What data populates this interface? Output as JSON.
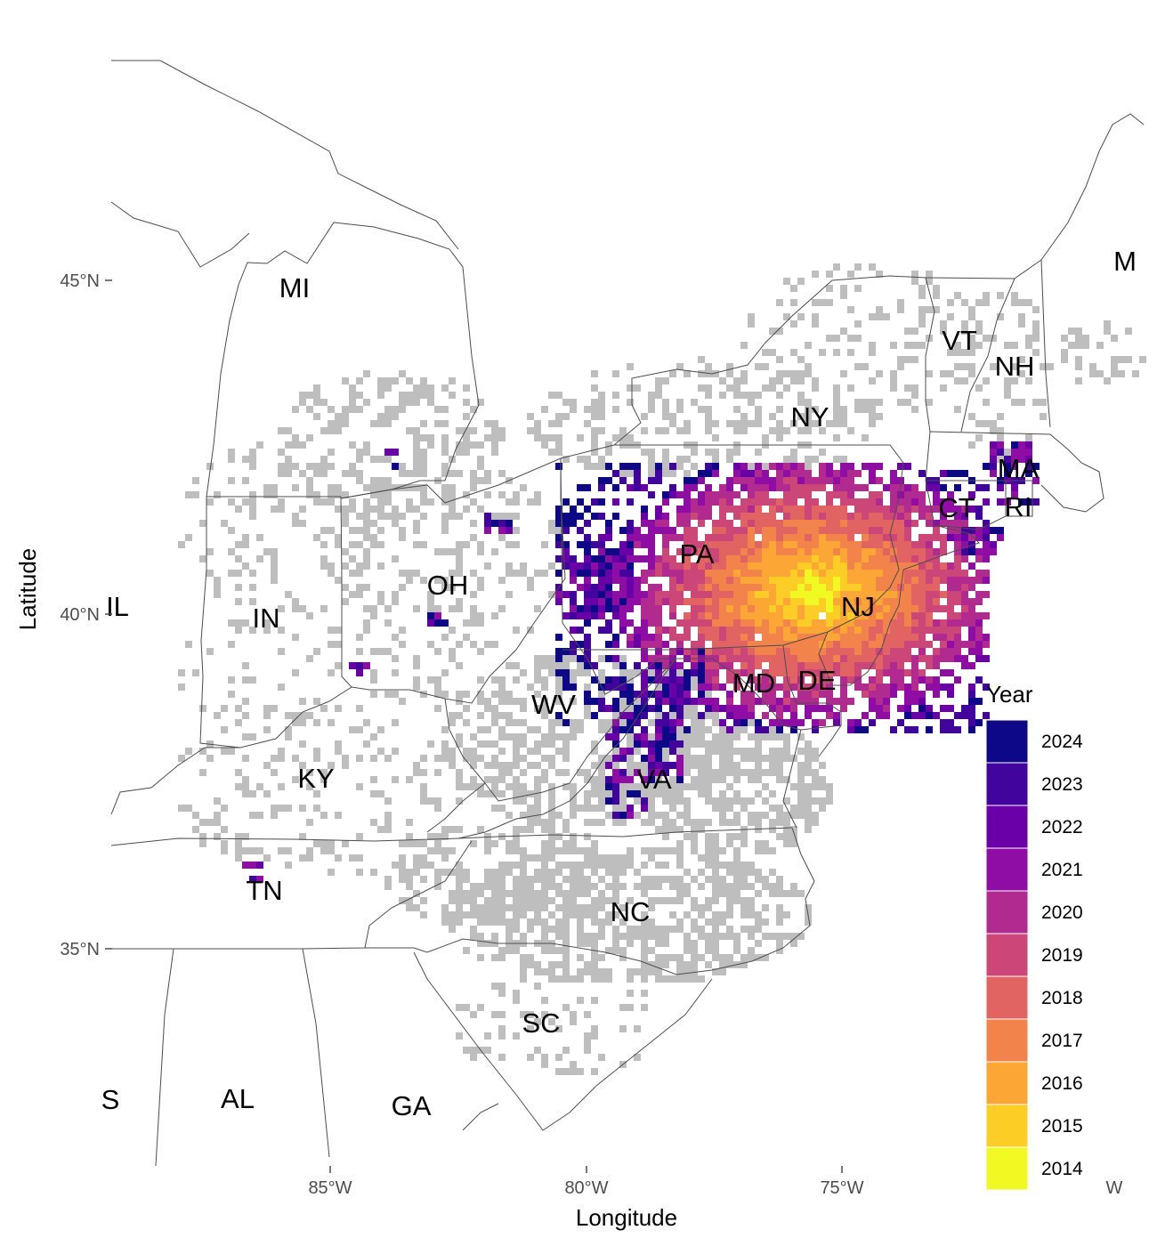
{
  "map": {
    "xlabel": "Longitude",
    "ylabel": "Latitude",
    "x_ticks": [
      "85°W",
      "80°W",
      "75°W"
    ],
    "y_ticks": [
      "45°N",
      "40°N",
      "35°N"
    ],
    "edge_labels": {
      "right_axis": "W",
      "maine": "M",
      "illinois": "IL",
      "mississippi": "S"
    }
  },
  "states": [
    "MI",
    "NY",
    "VT",
    "NH",
    "MA",
    "CT",
    "RI",
    "PA",
    "NJ",
    "OH",
    "IN",
    "DE",
    "MD",
    "WV",
    "VA",
    "KY",
    "TN",
    "NC",
    "SC",
    "AL",
    "GA"
  ],
  "legend": {
    "title": "Year",
    "items": [
      {
        "label": "2024",
        "color": "#0d0887"
      },
      {
        "label": "2023",
        "color": "#41049d"
      },
      {
        "label": "2022",
        "color": "#6a00a8"
      },
      {
        "label": "2021",
        "color": "#8f0da4"
      },
      {
        "label": "2020",
        "color": "#b12a90"
      },
      {
        "label": "2019",
        "color": "#cc4778"
      },
      {
        "label": "2018",
        "color": "#e16462"
      },
      {
        "label": "2017",
        "color": "#f2844b"
      },
      {
        "label": "2016",
        "color": "#fca636"
      },
      {
        "label": "2015",
        "color": "#fcce25"
      },
      {
        "label": "2014",
        "color": "#f0f921"
      }
    ]
  },
  "colors": {
    "no_detection": "#bebebe",
    "border": "#4d4d4d"
  }
}
